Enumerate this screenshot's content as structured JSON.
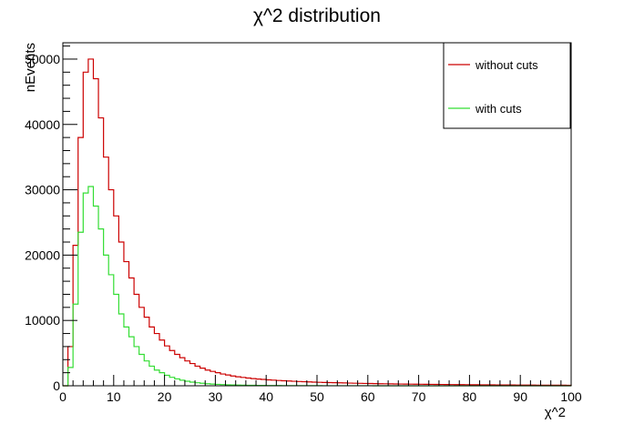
{
  "chart_data": {
    "type": "histogram",
    "title": "χ^2 distribution",
    "xlabel": "χ^2",
    "ylabel": "nEvents",
    "xlim": [
      0,
      100
    ],
    "ylim": [
      0,
      52500
    ],
    "xticks": [
      0,
      10,
      20,
      30,
      40,
      50,
      60,
      70,
      80,
      90,
      100
    ],
    "yticks": [
      0,
      10000,
      20000,
      30000,
      40000,
      50000
    ],
    "bin_width": 1,
    "legend_position": "top-right",
    "grid": false,
    "series": [
      {
        "name": "without cuts",
        "color": "#cc0000",
        "values": [
          0,
          6000,
          21500,
          38000,
          48000,
          50000,
          47000,
          41000,
          35000,
          30000,
          26000,
          22000,
          19000,
          16500,
          14000,
          12000,
          10500,
          9000,
          8000,
          7000,
          6100,
          5400,
          4800,
          4300,
          3800,
          3400,
          3000,
          2700,
          2400,
          2200,
          2000,
          1800,
          1650,
          1500,
          1380,
          1280,
          1180,
          1100,
          1030,
          970,
          910,
          860,
          810,
          770,
          730,
          690,
          650,
          620,
          590,
          560,
          530,
          510,
          490,
          470,
          450,
          430,
          410,
          390,
          375,
          360,
          345,
          330,
          318,
          306,
          294,
          282,
          271,
          260,
          250,
          241,
          232,
          224,
          216,
          208,
          200,
          193,
          186,
          179,
          172,
          166,
          160,
          154,
          148,
          143,
          138,
          133,
          128,
          123,
          119,
          115,
          111,
          107,
          103,
          99,
          95,
          92,
          89,
          86,
          83,
          80
        ]
      },
      {
        "name": "with cuts",
        "color": "#33dd33",
        "values": [
          0,
          2800,
          12500,
          23500,
          29500,
          30500,
          27500,
          24000,
          20000,
          17000,
          14000,
          11000,
          9000,
          7500,
          6000,
          4800,
          3800,
          3000,
          2400,
          2000,
          1600,
          1300,
          1050,
          850,
          700,
          560,
          460,
          380,
          310,
          260,
          220,
          180,
          150,
          125,
          105,
          90,
          75,
          65,
          55,
          48,
          42,
          37,
          32,
          28,
          25,
          22,
          20,
          18,
          16,
          14,
          13,
          12,
          11,
          10,
          9,
          8,
          8,
          7,
          7,
          6,
          6,
          5,
          5,
          5,
          4,
          4,
          4,
          4,
          3,
          3,
          3,
          3,
          3,
          2,
          2,
          2,
          2,
          2,
          2,
          2,
          2,
          1,
          1,
          1,
          1,
          1,
          1,
          1,
          1,
          1,
          1,
          1,
          1,
          1,
          1,
          1,
          1,
          1,
          1,
          1
        ]
      }
    ]
  }
}
